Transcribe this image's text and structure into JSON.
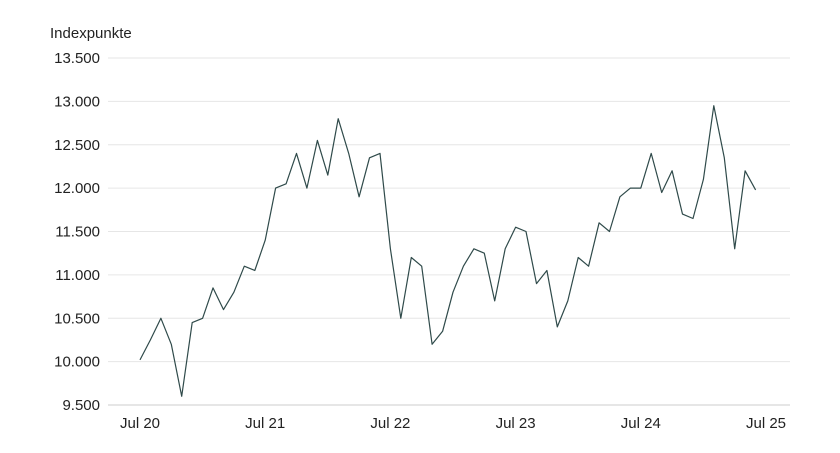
{
  "chart_data": {
    "type": "line",
    "ylabel": "Indexpunkte",
    "ylim": [
      9500,
      13500
    ],
    "xlim": [
      "2020-07",
      "2025-07"
    ],
    "yticks": [
      9500,
      10000,
      10500,
      11000,
      11500,
      12000,
      12500,
      13000,
      13500
    ],
    "ytick_labels": [
      "9.500",
      "10.000",
      "10.500",
      "11.000",
      "11.500",
      "12.000",
      "12.500",
      "13.000",
      "13.500"
    ],
    "xticks": [
      "2020-07",
      "2021-07",
      "2022-07",
      "2023-07",
      "2024-07",
      "2025-07"
    ],
    "xtick_labels": [
      "Jul 20",
      "Jul 21",
      "Jul 22",
      "Jul 23",
      "Jul 24",
      "Jul 25"
    ],
    "grid": true,
    "line_color": "#2f4a4a",
    "series": [
      {
        "x": [
          "2020-07",
          "2020-08",
          "2020-09",
          "2020-10",
          "2020-11",
          "2020-12",
          "2021-01",
          "2021-02",
          "2021-03",
          "2021-04",
          "2021-05",
          "2021-06",
          "2021-07",
          "2021-08",
          "2021-09",
          "2021-10",
          "2021-11",
          "2021-12",
          "2022-01",
          "2022-02",
          "2022-03",
          "2022-04",
          "2022-05",
          "2022-06",
          "2022-07",
          "2022-08",
          "2022-09",
          "2022-10",
          "2022-11",
          "2022-12",
          "2023-01",
          "2023-02",
          "2023-03",
          "2023-04",
          "2023-05",
          "2023-06",
          "2023-07",
          "2023-08",
          "2023-09",
          "2023-10",
          "2023-11",
          "2023-12",
          "2024-01",
          "2024-02",
          "2024-03",
          "2024-04",
          "2024-05",
          "2024-06",
          "2024-07",
          "2024-08",
          "2024-09",
          "2024-10",
          "2024-11",
          "2024-12",
          "2025-01",
          "2025-02",
          "2025-03",
          "2025-04",
          "2025-05",
          "2025-06"
        ],
        "y": [
          10020,
          10250,
          10500,
          10200,
          9600,
          10450,
          10500,
          10850,
          10600,
          10800,
          11100,
          11050,
          11400,
          12000,
          12050,
          12400,
          12000,
          12550,
          12150,
          12800,
          12400,
          11900,
          12350,
          12400,
          11300,
          10500,
          11200,
          11100,
          10200,
          10350,
          10800,
          11100,
          11300,
          11250,
          10700,
          11300,
          11550,
          11500,
          10900,
          11050,
          10400,
          10700,
          11200,
          11100,
          11600,
          11500,
          11900,
          12000,
          12000,
          12400,
          11950,
          12200,
          11700,
          11650,
          12100,
          12950,
          12350,
          11300,
          12200,
          11980
        ]
      }
    ]
  }
}
